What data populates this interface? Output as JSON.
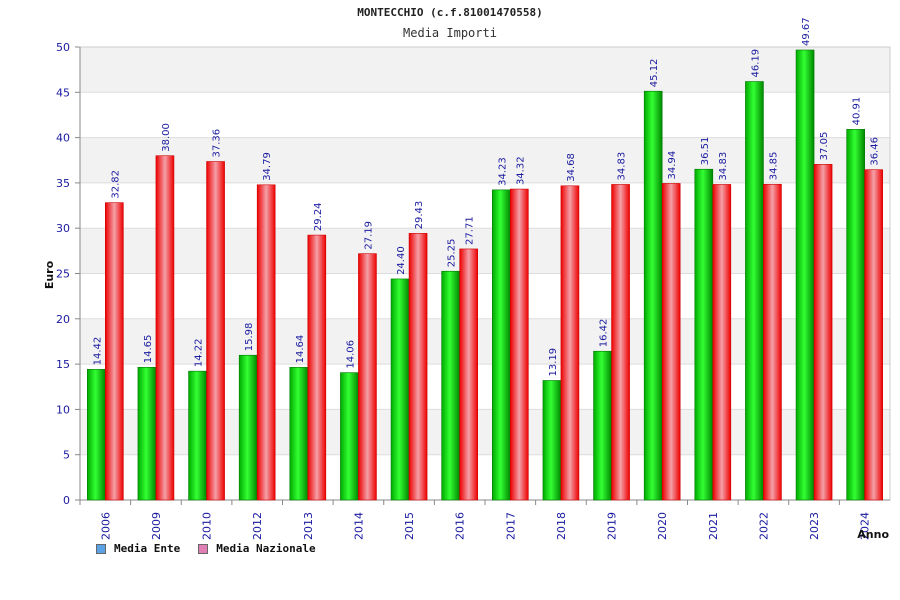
{
  "chart_data": {
    "type": "bar",
    "title": "MONTECCHIO (c.f.81001470558)",
    "subtitle": "Media Importi",
    "xlabel": "Anno",
    "ylabel": "Euro",
    "ylim": [
      0,
      50
    ],
    "yticks": [
      0,
      5,
      10,
      15,
      20,
      25,
      30,
      35,
      40,
      45,
      50
    ],
    "grid": true,
    "legend_position": "bottom-left",
    "categories": [
      "2006",
      "2009",
      "2010",
      "2012",
      "2013",
      "2014",
      "2015",
      "2016",
      "2017",
      "2018",
      "2019",
      "2020",
      "2021",
      "2022",
      "2023",
      "2024"
    ],
    "series": [
      {
        "name": "Media Ente",
        "color": "#00cc00",
        "legend_color": "#5ba3e6",
        "values": [
          14.42,
          14.65,
          14.22,
          15.98,
          14.64,
          14.06,
          24.4,
          25.25,
          34.23,
          13.19,
          16.42,
          45.12,
          36.51,
          46.19,
          49.67,
          40.91
        ],
        "labels": [
          "14.42",
          "14.65",
          "14.22",
          "15.98",
          "14.64",
          "14.06",
          "24.40",
          "25.25",
          "34.23",
          "13.19",
          "16.42",
          "45.12",
          "36.51",
          "46.19",
          "49.67",
          "40.91"
        ]
      },
      {
        "name": "Media Nazionale",
        "color": "#ee1122",
        "legend_color": "#e07fb4",
        "values": [
          32.82,
          38.0,
          37.36,
          34.79,
          29.24,
          27.19,
          29.43,
          27.71,
          34.32,
          34.68,
          34.83,
          34.94,
          34.83,
          34.85,
          37.05,
          36.46
        ],
        "labels": [
          "32.82",
          "38.00",
          "37.36",
          "34.79",
          "29.24",
          "27.19",
          "29.43",
          "27.71",
          "34.32",
          "34.68",
          "34.83",
          "34.94",
          "34.83",
          "34.85",
          "37.05",
          "36.46"
        ]
      }
    ]
  }
}
